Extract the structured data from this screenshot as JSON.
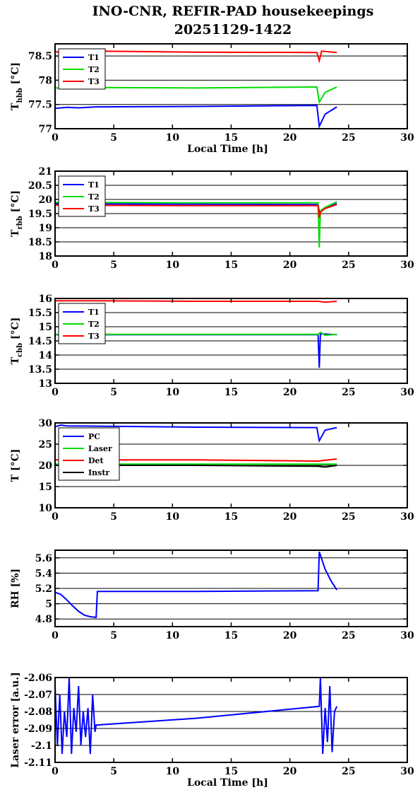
{
  "title": {
    "line1": "INO-CNR, REFIR-PAD housekeepings",
    "line2": "20251129-1422"
  },
  "chart_data": [
    {
      "type": "line",
      "ylabel": {
        "main": "T",
        "sub": "hbb",
        "unit": " [°C]"
      },
      "xlabel": "Local Time [h]",
      "xlim": [
        0,
        30
      ],
      "ylim": [
        77,
        78.75
      ],
      "yticks": [
        77,
        77.5,
        78,
        78.5
      ],
      "ytick_labels": [
        "77",
        "77.5",
        "78",
        "78.5"
      ],
      "xticks": [
        0,
        5,
        10,
        15,
        20,
        25,
        30
      ],
      "xtick_labels": [
        "0",
        "5",
        "10",
        "15",
        "20",
        "25",
        "30"
      ],
      "grid": "horizontal",
      "legend": "top-left",
      "series": [
        {
          "name": "T1",
          "color": "#0000ff",
          "values": [
            [
              0,
              77.42
            ],
            [
              1,
              77.44
            ],
            [
              2,
              77.43
            ],
            [
              3.5,
              77.45
            ],
            [
              12,
              77.46
            ],
            [
              22.3,
              77.48
            ],
            [
              22.5,
              77.05
            ],
            [
              23,
              77.3
            ],
            [
              24,
              77.45
            ]
          ]
        },
        {
          "name": "T2",
          "color": "#00dd00",
          "values": [
            [
              0,
              77.84
            ],
            [
              3.5,
              77.85
            ],
            [
              12,
              77.84
            ],
            [
              22.3,
              77.86
            ],
            [
              22.5,
              77.55
            ],
            [
              23,
              77.75
            ],
            [
              24,
              77.86
            ]
          ]
        },
        {
          "name": "T3",
          "color": "#ff0000",
          "values": [
            [
              0,
              78.6
            ],
            [
              0.3,
              78.57
            ],
            [
              3.5,
              78.6
            ],
            [
              12,
              78.58
            ],
            [
              22.3,
              78.57
            ],
            [
              22.5,
              78.4
            ],
            [
              22.7,
              78.6
            ],
            [
              24,
              78.57
            ]
          ]
        }
      ]
    },
    {
      "type": "line",
      "ylabel": {
        "main": "T",
        "sub": "rbb",
        "unit": " [°C]"
      },
      "xlabel": "",
      "xlim": [
        0,
        30
      ],
      "ylim": [
        18,
        21
      ],
      "yticks": [
        18,
        18.5,
        19,
        19.5,
        20,
        20.5,
        21
      ],
      "ytick_labels": [
        "18",
        "18.5",
        "19",
        "19.5",
        "20",
        "20.5",
        "21"
      ],
      "xticks": [
        0,
        5,
        10,
        15,
        20,
        25,
        30
      ],
      "xtick_labels": [
        "0",
        "5",
        "10",
        "15",
        "20",
        "25",
        "30"
      ],
      "grid": "horizontal",
      "legend": "top-left",
      "series": [
        {
          "name": "T1",
          "color": "#0000ff",
          "values": [
            [
              0,
              19.85
            ],
            [
              12,
              19.83
            ],
            [
              22.4,
              19.82
            ],
            [
              22.5,
              19.55
            ],
            [
              23,
              19.7
            ],
            [
              24,
              19.85
            ]
          ]
        },
        {
          "name": "T2",
          "color": "#00dd00",
          "values": [
            [
              0,
              19.9
            ],
            [
              12,
              19.88
            ],
            [
              22.4,
              19.88
            ],
            [
              22.5,
              18.3
            ],
            [
              22.6,
              19.6
            ],
            [
              23,
              19.72
            ],
            [
              24,
              19.92
            ]
          ]
        },
        {
          "name": "T3",
          "color": "#ff0000",
          "values": [
            [
              0,
              19.8
            ],
            [
              12,
              19.78
            ],
            [
              22.4,
              19.78
            ],
            [
              22.5,
              19.35
            ],
            [
              22.6,
              19.55
            ],
            [
              23,
              19.68
            ],
            [
              24,
              19.82
            ]
          ]
        }
      ]
    },
    {
      "type": "line",
      "ylabel": {
        "main": "T",
        "sub": "cbb",
        "unit": " [°C]"
      },
      "xlabel": "",
      "xlim": [
        0,
        30
      ],
      "ylim": [
        13,
        16
      ],
      "yticks": [
        13,
        13.5,
        14,
        14.5,
        15,
        15.5,
        16
      ],
      "ytick_labels": [
        "13",
        "13.5",
        "14",
        "14.5",
        "15",
        "15.5",
        "16"
      ],
      "xticks": [
        0,
        5,
        10,
        15,
        20,
        25,
        30
      ],
      "xtick_labels": [
        "0",
        "5",
        "10",
        "15",
        "20",
        "25",
        "30"
      ],
      "grid": "horizontal",
      "legend": "top-left",
      "series": [
        {
          "name": "T1",
          "color": "#0000ff",
          "values": [
            [
              0,
              14.72
            ],
            [
              12,
              14.72
            ],
            [
              22.4,
              14.72
            ],
            [
              22.5,
              13.55
            ],
            [
              22.6,
              14.75
            ],
            [
              24,
              14.72
            ]
          ]
        },
        {
          "name": "T2",
          "color": "#00dd00",
          "values": [
            [
              0,
              14.73
            ],
            [
              12,
              14.73
            ],
            [
              22.4,
              14.73
            ],
            [
              22.6,
              14.8
            ],
            [
              23,
              14.7
            ],
            [
              24,
              14.73
            ]
          ]
        },
        {
          "name": "T3",
          "color": "#ff0000",
          "values": [
            [
              0,
              15.92
            ],
            [
              3,
              15.92
            ],
            [
              12,
              15.9
            ],
            [
              22.4,
              15.9
            ],
            [
              23,
              15.87
            ],
            [
              24,
              15.9
            ]
          ]
        }
      ]
    },
    {
      "type": "line",
      "ylabel": {
        "main": "T",
        "sub": "",
        "unit": " [°C]"
      },
      "xlabel": "",
      "xlim": [
        0,
        30
      ],
      "ylim": [
        10,
        30
      ],
      "yticks": [
        10,
        15,
        20,
        25,
        30
      ],
      "ytick_labels": [
        "10",
        "15",
        "20",
        "25",
        "30"
      ],
      "xticks": [
        0,
        5,
        10,
        15,
        20,
        25,
        30
      ],
      "xtick_labels": [
        "0",
        "5",
        "10",
        "15",
        "20",
        "25",
        "30"
      ],
      "grid": "horizontal",
      "legend": "top-left",
      "series": [
        {
          "name": "PC",
          "color": "#0000ff",
          "values": [
            [
              0,
              29.1
            ],
            [
              0.5,
              29.5
            ],
            [
              1,
              29.3
            ],
            [
              12,
              29.0
            ],
            [
              22.3,
              28.9
            ],
            [
              22.5,
              25.8
            ],
            [
              23,
              28.3
            ],
            [
              24,
              28.9
            ]
          ]
        },
        {
          "name": "Laser",
          "color": "#00dd00",
          "values": [
            [
              0,
              20.3
            ],
            [
              12,
              20.3
            ],
            [
              22.4,
              20.3
            ],
            [
              24,
              20.3
            ]
          ]
        },
        {
          "name": "Det",
          "color": "#ff0000",
          "values": [
            [
              0,
              21.3
            ],
            [
              12,
              21.3
            ],
            [
              22.4,
              21.0
            ],
            [
              23,
              21.2
            ],
            [
              24,
              21.5
            ]
          ]
        },
        {
          "name": "Instr",
          "color": "#000000",
          "values": [
            [
              0,
              20.0
            ],
            [
              12,
              20.0
            ],
            [
              22.4,
              19.8
            ],
            [
              23,
              19.6
            ],
            [
              24,
              20.0
            ]
          ]
        }
      ]
    },
    {
      "type": "line",
      "ylabel": {
        "main": "RH [%]",
        "sub": "",
        "unit": ""
      },
      "xlabel": "",
      "xlim": [
        0,
        30
      ],
      "ylim": [
        4.7,
        5.7
      ],
      "yticks": [
        4.8,
        5,
        5.2,
        5.4,
        5.6
      ],
      "ytick_labels": [
        "4.8",
        "5",
        "5.2",
        "5.4",
        "5.6"
      ],
      "xticks": [
        0,
        5,
        10,
        15,
        20,
        25,
        30
      ],
      "xtick_labels": [
        "0",
        "5",
        "10",
        "15",
        "20",
        "25",
        "30"
      ],
      "grid": "horizontal",
      "legend": "none",
      "series": [
        {
          "name": "",
          "color": "#0000ff",
          "values": [
            [
              0,
              5.15
            ],
            [
              0.5,
              5.12
            ],
            [
              1,
              5.05
            ],
            [
              1.5,
              4.97
            ],
            [
              2,
              4.9
            ],
            [
              2.5,
              4.85
            ],
            [
              3,
              4.83
            ],
            [
              3.5,
              4.82
            ],
            [
              3.6,
              5.16
            ],
            [
              12,
              5.16
            ],
            [
              22.4,
              5.17
            ],
            [
              22.5,
              5.68
            ],
            [
              23,
              5.45
            ],
            [
              23.5,
              5.3
            ],
            [
              24,
              5.18
            ]
          ]
        }
      ]
    },
    {
      "type": "line",
      "ylabel": {
        "main": "Laser error [a.u.]",
        "sub": "",
        "unit": ""
      },
      "xlabel": "Local Time [h]",
      "xlim": [
        0,
        30
      ],
      "ylim": [
        -2.11,
        -2.06
      ],
      "yticks": [
        -2.11,
        -2.1,
        -2.09,
        -2.08,
        -2.07,
        -2.06
      ],
      "ytick_labels": [
        "-2.11",
        "-2.1",
        "-2.09",
        "-2.08",
        "-2.07",
        "-2.06"
      ],
      "xticks": [
        0,
        5,
        10,
        15,
        20,
        25,
        30
      ],
      "xtick_labels": [
        "0",
        "5",
        "10",
        "15",
        "20",
        "25",
        "30"
      ],
      "grid": "horizontal",
      "legend": "none",
      "series": [
        {
          "name": "",
          "color": "#0000ff",
          "values": [
            [
              0,
              -2.065
            ],
            [
              0.2,
              -2.1
            ],
            [
              0.4,
              -2.07
            ],
            [
              0.6,
              -2.105
            ],
            [
              0.8,
              -2.08
            ],
            [
              1.0,
              -2.095
            ],
            [
              1.2,
              -2.06
            ],
            [
              1.4,
              -2.105
            ],
            [
              1.6,
              -2.078
            ],
            [
              1.8,
              -2.092
            ],
            [
              2.0,
              -2.065
            ],
            [
              2.2,
              -2.1
            ],
            [
              2.4,
              -2.08
            ],
            [
              2.6,
              -2.095
            ],
            [
              2.8,
              -2.078
            ],
            [
              3.0,
              -2.105
            ],
            [
              3.2,
              -2.07
            ],
            [
              3.4,
              -2.092
            ],
            [
              3.5,
              -2.088
            ],
            [
              12,
              -2.084
            ],
            [
              22.5,
              -2.077
            ],
            [
              22.6,
              -2.06
            ],
            [
              22.8,
              -2.105
            ],
            [
              23.0,
              -2.078
            ],
            [
              23.2,
              -2.098
            ],
            [
              23.4,
              -2.065
            ],
            [
              23.6,
              -2.104
            ],
            [
              23.8,
              -2.08
            ],
            [
              24,
              -2.077
            ]
          ]
        }
      ]
    }
  ]
}
